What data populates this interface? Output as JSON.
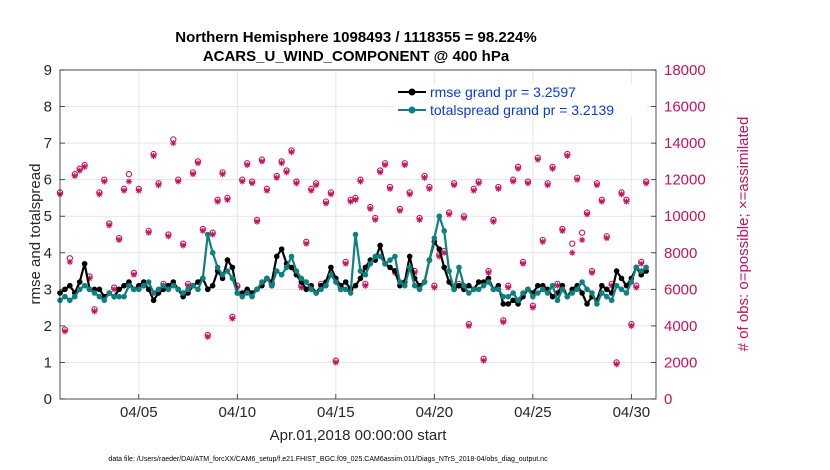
{
  "chart_data": {
    "type": "line",
    "title_line1": "Northern Hemisphere 1098493 / 1118355 = 98.224%",
    "title_line2": "ACARS_U_WIND_COMPONENT @ 400 hPa",
    "xlabel": "Apr.01,2018 00:00:00 start",
    "ylabel_left": "rmse and totalspread",
    "ylabel_right": "# of obs: o=possible; ×=assimilated",
    "footnote": "data file: /Users/raeder/DAI/ATM_forcXX/CAM6_setup/f.e21.FHIST_BGC.f09_025.CAM6assim.011/Diags_NTrS_2018-04/obs_diag_output.nc",
    "xlim": [
      1.0,
      31.25
    ],
    "ylim_left": [
      0,
      9
    ],
    "ylim_right": [
      0,
      18000
    ],
    "x_tick_values": [
      5,
      10,
      15,
      20,
      25,
      30
    ],
    "x_tick_labels": [
      "04/05",
      "04/10",
      "04/15",
      "04/20",
      "04/25",
      "04/30"
    ],
    "y_left_ticks": [
      "0",
      "1",
      "2",
      "3",
      "4",
      "5",
      "6",
      "7",
      "8",
      "9"
    ],
    "y_right_ticks": [
      "0",
      "2000",
      "4000",
      "6000",
      "8000",
      "10000",
      "12000",
      "14000",
      "16000",
      "18000"
    ],
    "colors": {
      "rmse": "#000000",
      "totalspread": "#0e8080",
      "obs": "#c7125e",
      "legend_text": "#0b3bd8",
      "grid": "#e6e6e6"
    },
    "series": [
      {
        "name": "rmse grand pr = 3.2597",
        "key": "rmse",
        "x": [
          1.0,
          1.25,
          1.5,
          1.75,
          2.0,
          2.25,
          2.5,
          2.75,
          3.0,
          3.25,
          3.5,
          3.75,
          4.0,
          4.25,
          4.5,
          4.75,
          5.0,
          5.25,
          5.5,
          5.75,
          6.0,
          6.25,
          6.5,
          6.75,
          7.0,
          7.25,
          7.5,
          7.75,
          8.0,
          8.25,
          8.5,
          8.75,
          9.0,
          9.25,
          9.5,
          9.75,
          10.0,
          10.25,
          10.5,
          10.75,
          11.0,
          11.25,
          11.5,
          11.75,
          12.0,
          12.25,
          12.5,
          12.75,
          13.0,
          13.25,
          13.5,
          13.75,
          14.0,
          14.25,
          14.5,
          14.75,
          15.0,
          15.25,
          15.5,
          15.75,
          16.0,
          16.25,
          16.5,
          16.75,
          17.0,
          17.25,
          17.5,
          17.75,
          18.0,
          18.25,
          18.5,
          18.75,
          19.0,
          19.25,
          19.5,
          19.75,
          20.0,
          20.25,
          20.5,
          20.75,
          21.0,
          21.25,
          21.5,
          21.75,
          22.0,
          22.25,
          22.5,
          22.75,
          23.0,
          23.25,
          23.5,
          23.75,
          24.0,
          24.25,
          24.5,
          24.75,
          25.0,
          25.25,
          25.5,
          25.75,
          26.0,
          26.25,
          26.5,
          26.75,
          27.0,
          27.25,
          27.5,
          27.75,
          28.0,
          28.25,
          28.5,
          28.75,
          29.0,
          29.25,
          29.5,
          29.75,
          30.0,
          30.25,
          30.5,
          30.75
        ],
        "values": [
          2.9,
          3.0,
          3.1,
          2.9,
          3.2,
          3.7,
          3.0,
          3.0,
          3.0,
          2.8,
          2.9,
          2.8,
          3.0,
          3.1,
          3.2,
          3.0,
          3.1,
          3.2,
          3.0,
          2.7,
          2.9,
          3.0,
          3.1,
          3.2,
          3.0,
          2.8,
          2.9,
          3.1,
          3.2,
          3.3,
          3.0,
          3.1,
          3.5,
          3.3,
          3.8,
          3.6,
          2.9,
          2.9,
          3.0,
          2.9,
          3.0,
          3.1,
          3.3,
          3.2,
          3.9,
          4.1,
          3.7,
          3.6,
          3.4,
          3.2,
          3.0,
          3.1,
          2.9,
          3.1,
          3.2,
          3.6,
          3.3,
          3.1,
          3.2,
          3.0,
          3.1,
          3.3,
          3.6,
          3.8,
          3.8,
          4.2,
          3.7,
          3.6,
          3.5,
          3.1,
          3.2,
          3.9,
          3.3,
          3.1,
          3.2,
          3.8,
          4.3,
          4.1,
          3.6,
          3.2,
          3.0,
          3.1,
          3.0,
          3.1,
          3.0,
          3.2,
          3.2,
          3.3,
          3.0,
          3.1,
          2.6,
          2.6,
          2.7,
          2.6,
          2.8,
          3.0,
          2.9,
          3.1,
          3.1,
          3.0,
          2.8,
          2.9,
          3.1,
          2.8,
          3.0,
          3.1,
          2.9,
          2.6,
          2.8,
          2.7,
          3.1,
          3.0,
          2.9,
          3.5,
          3.3,
          3.1,
          3.3,
          3.6,
          3.4,
          3.5
        ]
      },
      {
        "name": "totalspread grand pr = 3.2139",
        "key": "totalspread",
        "x": [
          1.0,
          1.25,
          1.5,
          1.75,
          2.0,
          2.25,
          2.5,
          2.75,
          3.0,
          3.25,
          3.5,
          3.75,
          4.0,
          4.25,
          4.5,
          4.75,
          5.0,
          5.25,
          5.5,
          5.75,
          6.0,
          6.25,
          6.5,
          6.75,
          7.0,
          7.25,
          7.5,
          7.75,
          8.0,
          8.25,
          8.5,
          8.75,
          9.0,
          9.25,
          9.5,
          9.75,
          10.0,
          10.25,
          10.5,
          10.75,
          11.0,
          11.25,
          11.5,
          11.75,
          12.0,
          12.25,
          12.5,
          12.75,
          13.0,
          13.25,
          13.5,
          13.75,
          14.0,
          14.25,
          14.5,
          14.75,
          15.0,
          15.25,
          15.5,
          15.75,
          16.0,
          16.25,
          16.5,
          16.75,
          17.0,
          17.25,
          17.5,
          17.75,
          18.0,
          18.25,
          18.5,
          18.75,
          19.0,
          19.25,
          19.5,
          19.75,
          20.0,
          20.25,
          20.5,
          20.75,
          21.0,
          21.25,
          21.5,
          21.75,
          22.0,
          22.25,
          22.5,
          22.75,
          23.0,
          23.25,
          23.5,
          23.75,
          24.0,
          24.25,
          24.5,
          24.75,
          25.0,
          25.25,
          25.5,
          25.75,
          26.0,
          26.25,
          26.5,
          26.75,
          27.0,
          27.25,
          27.5,
          27.75,
          28.0,
          28.25,
          28.5,
          28.75,
          29.0,
          29.25,
          29.5,
          29.75,
          30.0,
          30.25,
          30.5,
          30.75
        ],
        "values": [
          2.7,
          2.8,
          2.7,
          2.8,
          3.0,
          3.1,
          3.0,
          2.9,
          2.8,
          2.7,
          2.9,
          2.8,
          2.8,
          2.8,
          3.1,
          3.0,
          3.0,
          3.1,
          3.2,
          2.9,
          3.0,
          3.1,
          3.0,
          3.1,
          3.0,
          2.9,
          3.0,
          3.1,
          3.0,
          3.3,
          4.5,
          4.0,
          3.6,
          3.4,
          3.5,
          3.3,
          2.9,
          2.8,
          2.9,
          2.8,
          3.0,
          3.2,
          3.3,
          3.1,
          3.5,
          3.4,
          3.6,
          3.9,
          3.5,
          3.3,
          3.2,
          3.0,
          2.9,
          3.0,
          3.1,
          3.4,
          3.2,
          3.0,
          3.0,
          2.9,
          4.5,
          3.5,
          3.4,
          3.7,
          3.9,
          3.9,
          3.7,
          3.8,
          3.9,
          3.2,
          3.1,
          3.6,
          3.1,
          3.0,
          3.2,
          3.8,
          4.4,
          5.0,
          4.6,
          3.5,
          3.0,
          3.6,
          3.1,
          2.9,
          3.0,
          3.0,
          3.1,
          3.2,
          3.0,
          3.0,
          2.8,
          2.8,
          2.9,
          2.7,
          2.9,
          3.0,
          2.8,
          2.9,
          3.0,
          2.9,
          3.1,
          2.7,
          3.0,
          2.8,
          2.9,
          3.0,
          3.2,
          3.0,
          2.9,
          2.6,
          2.9,
          2.8,
          2.7,
          3.1,
          3.0,
          2.9,
          3.2,
          3.6,
          3.5,
          3.6
        ]
      }
    ],
    "obs_possible": {
      "name": "possible",
      "x": [
        1.0,
        1.25,
        1.5,
        1.75,
        2.0,
        2.25,
        2.5,
        2.75,
        3.0,
        3.25,
        3.5,
        3.75,
        4.0,
        4.25,
        4.5,
        4.75,
        5.0,
        5.25,
        5.5,
        5.75,
        6.0,
        6.25,
        6.5,
        6.75,
        7.0,
        7.25,
        7.5,
        7.75,
        8.0,
        8.25,
        8.5,
        8.75,
        9.0,
        9.25,
        9.5,
        9.75,
        10.0,
        10.25,
        10.5,
        10.75,
        11.0,
        11.25,
        11.5,
        11.75,
        12.0,
        12.25,
        12.5,
        12.75,
        13.0,
        13.25,
        13.5,
        13.75,
        14.0,
        14.25,
        14.5,
        14.75,
        15.0,
        15.25,
        15.5,
        15.75,
        16.0,
        16.25,
        16.5,
        16.75,
        17.0,
        17.25,
        17.5,
        17.75,
        18.0,
        18.25,
        18.5,
        18.75,
        19.0,
        19.25,
        19.5,
        19.75,
        20.0,
        20.25,
        20.5,
        20.75,
        21.0,
        21.25,
        21.5,
        21.75,
        22.0,
        22.25,
        22.5,
        22.75,
        23.0,
        23.25,
        23.5,
        23.75,
        24.0,
        24.25,
        24.5,
        24.75,
        25.0,
        25.25,
        25.5,
        25.75,
        26.0,
        26.25,
        26.5,
        26.75,
        27.0,
        27.25,
        27.5,
        27.75,
        28.0,
        28.25,
        28.5,
        28.75,
        29.0,
        29.25,
        29.5,
        29.75,
        30.0,
        30.25,
        30.5,
        30.75
      ],
      "values": [
        11300,
        3800,
        7700,
        12300,
        12600,
        12800,
        6700,
        4900,
        11300,
        12000,
        9600,
        6100,
        8800,
        11500,
        12300,
        6900,
        11500,
        6300,
        9200,
        13400,
        11800,
        6300,
        9000,
        14200,
        12000,
        8500,
        6300,
        12400,
        13000,
        9300,
        3500,
        9100,
        10900,
        12400,
        11000,
        4500,
        6200,
        12000,
        12900,
        11900,
        9800,
        13100,
        11500,
        6300,
        12200,
        13000,
        12500,
        13600,
        11900,
        6200,
        8600,
        11500,
        11800,
        6300,
        10800,
        11300,
        2100,
        6100,
        7500,
        10900,
        11000,
        12000,
        6300,
        10500,
        9900,
        12500,
        12900,
        11600,
        7000,
        10400,
        12900,
        11300,
        7000,
        9900,
        12200,
        11600,
        6200,
        7900,
        8100,
        10200,
        11800,
        6300,
        10000,
        4100,
        11500,
        11900,
        2200,
        7000,
        9800,
        11600,
        4300,
        6200,
        12000,
        12700,
        7500,
        11900,
        5100,
        13200,
        8700,
        11800,
        12700,
        6300,
        9300,
        13400,
        8500,
        12100,
        9100,
        10200,
        7000,
        11800,
        10900,
        8900,
        6300,
        2000,
        11300,
        10900,
        4100,
        6200,
        7500,
        11900
      ],
      "marker": "o"
    },
    "obs_assimilated": {
      "name": "assimilated",
      "x": [
        1.0,
        1.25,
        1.5,
        1.75,
        2.0,
        2.25,
        2.5,
        2.75,
        3.0,
        3.25,
        3.5,
        3.75,
        4.0,
        4.25,
        4.5,
        4.75,
        5.0,
        5.25,
        5.5,
        5.75,
        6.0,
        6.25,
        6.5,
        6.75,
        7.0,
        7.25,
        7.5,
        7.75,
        8.0,
        8.25,
        8.5,
        8.75,
        9.0,
        9.25,
        9.5,
        9.75,
        10.0,
        10.25,
        10.5,
        10.75,
        11.0,
        11.25,
        11.5,
        11.75,
        12.0,
        12.25,
        12.5,
        12.75,
        13.0,
        13.25,
        13.5,
        13.75,
        14.0,
        14.25,
        14.5,
        14.75,
        15.0,
        15.25,
        15.5,
        15.75,
        16.0,
        16.25,
        16.5,
        16.75,
        17.0,
        17.25,
        17.5,
        17.75,
        18.0,
        18.25,
        18.5,
        18.75,
        19.0,
        19.25,
        19.5,
        19.75,
        20.0,
        20.25,
        20.5,
        20.75,
        21.0,
        21.25,
        21.5,
        21.75,
        22.0,
        22.25,
        22.5,
        22.75,
        23.0,
        23.25,
        23.5,
        23.75,
        24.0,
        24.25,
        24.5,
        24.75,
        25.0,
        25.25,
        25.5,
        25.75,
        26.0,
        26.25,
        26.5,
        26.75,
        27.0,
        27.25,
        27.5,
        27.75,
        28.0,
        28.25,
        28.5,
        28.75,
        29.0,
        29.25,
        29.5,
        29.75,
        30.0,
        30.25,
        30.5,
        30.75
      ],
      "values": [
        11200,
        3700,
        7500,
        12200,
        12500,
        12700,
        6600,
        4800,
        11200,
        11900,
        9500,
        6000,
        8700,
        11400,
        11900,
        6800,
        11400,
        6200,
        9100,
        13300,
        11700,
        6200,
        8900,
        14000,
        11900,
        8400,
        6200,
        12300,
        12900,
        9200,
        3400,
        9000,
        10800,
        12300,
        10900,
        4400,
        6100,
        11900,
        12800,
        11800,
        9700,
        13000,
        11400,
        6200,
        12100,
        12900,
        12400,
        13500,
        11800,
        6100,
        8500,
        11400,
        11700,
        6200,
        10700,
        11200,
        2000,
        6000,
        7400,
        10800,
        10900,
        11900,
        6200,
        10400,
        9800,
        12400,
        12800,
        11500,
        6900,
        10300,
        12800,
        11200,
        6900,
        9800,
        12100,
        11500,
        6100,
        7800,
        8000,
        10100,
        11700,
        6200,
        9900,
        4000,
        11400,
        11800,
        2100,
        6900,
        9700,
        11500,
        4200,
        6100,
        11900,
        12600,
        7400,
        11800,
        5000,
        13100,
        8600,
        11700,
        12600,
        6200,
        9200,
        13300,
        8000,
        12000,
        8700,
        10100,
        6900,
        11700,
        10800,
        8800,
        6200,
        1900,
        11200,
        10800,
        4000,
        6100,
        7400,
        11800
      ],
      "marker": "*"
    }
  }
}
